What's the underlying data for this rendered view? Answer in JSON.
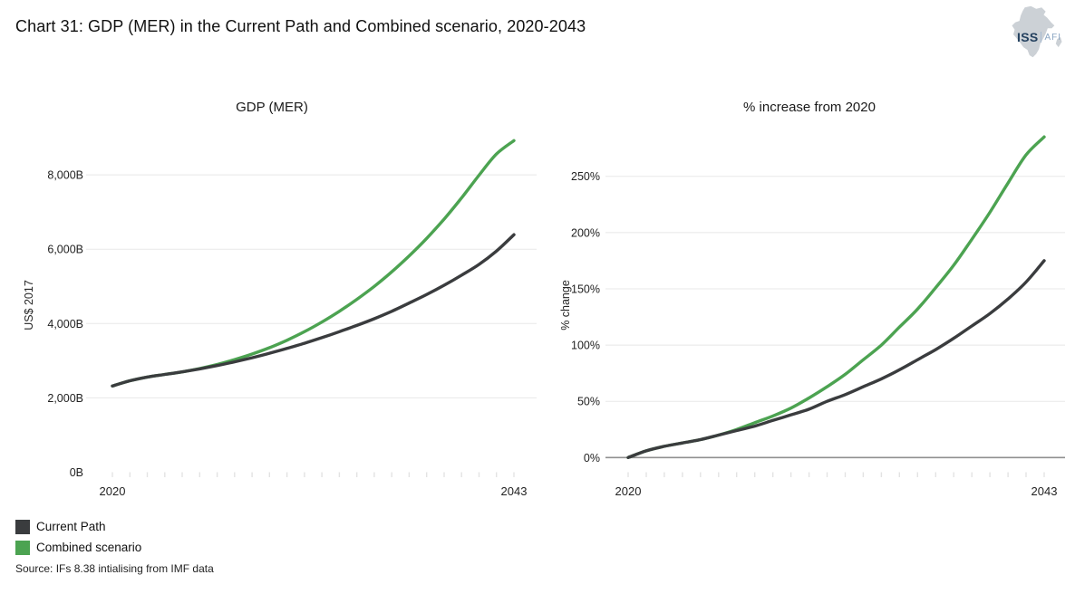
{
  "page": {
    "title": "Chart 31: GDP (MER) in the Current Path and Combined scenario, 2020-2043",
    "source": "Source: IFs 8.38 intialising from IMF data"
  },
  "logo": {
    "org": "ISS",
    "unit": "AFI"
  },
  "legend": {
    "items": [
      {
        "label": "Current Path",
        "color": "#3a3c3e"
      },
      {
        "label": "Combined scenario",
        "color": "#4ca351"
      }
    ]
  },
  "colors": {
    "current_path": "#3a3c3e",
    "combined_scenario": "#4ca351",
    "gridline": "#e8e8e8",
    "year_tick": "#e3e3e3",
    "zero_line": "#909090",
    "tick_text": "#222222"
  },
  "chart_data": [
    {
      "type": "line",
      "title": "GDP (MER)",
      "ylabel": "US$ 2017",
      "x": [
        2020,
        2021,
        2022,
        2023,
        2024,
        2025,
        2026,
        2027,
        2028,
        2029,
        2030,
        2031,
        2032,
        2033,
        2034,
        2035,
        2036,
        2037,
        2038,
        2039,
        2040,
        2041,
        2042,
        2043
      ],
      "xtick_labels": [
        "2020",
        "2043"
      ],
      "ylim": [
        0,
        9050
      ],
      "grid_at": [
        2000,
        4000,
        6000,
        8000
      ],
      "zero_line": false,
      "yticks": [
        {
          "value": 0,
          "label": "0B"
        },
        {
          "value": 2000,
          "label": "2,000B"
        },
        {
          "value": 4000,
          "label": "4,000B"
        },
        {
          "value": 6000,
          "label": "6,000B"
        },
        {
          "value": 8000,
          "label": "8,000B"
        }
      ],
      "series": [
        {
          "name": "Current Path",
          "color": "#3a3c3e",
          "values": [
            2320,
            2460,
            2560,
            2630,
            2700,
            2780,
            2870,
            2970,
            3080,
            3200,
            3330,
            3470,
            3620,
            3780,
            3950,
            4130,
            4330,
            4550,
            4780,
            5030,
            5300,
            5590,
            5950,
            6390
          ]
        },
        {
          "name": "Combined scenario",
          "color": "#4ca351",
          "values": [
            2320,
            2460,
            2560,
            2630,
            2700,
            2790,
            2900,
            3030,
            3180,
            3350,
            3550,
            3780,
            4040,
            4330,
            4650,
            5000,
            5390,
            5820,
            6290,
            6810,
            7380,
            7990,
            8560,
            8920
          ]
        }
      ]
    },
    {
      "type": "line",
      "title": "% increase from 2020",
      "ylabel": "% change",
      "x": [
        2020,
        2021,
        2022,
        2023,
        2024,
        2025,
        2026,
        2027,
        2028,
        2029,
        2030,
        2031,
        2032,
        2033,
        2034,
        2035,
        2036,
        2037,
        2038,
        2039,
        2040,
        2041,
        2042,
        2043
      ],
      "xtick_labels": [
        "2020",
        "2043"
      ],
      "ylim": [
        -13,
        286
      ],
      "grid_at": [
        50,
        100,
        150,
        200,
        250
      ],
      "zero_line": true,
      "yticks": [
        {
          "value": 0,
          "label": "0%"
        },
        {
          "value": 50,
          "label": "50%"
        },
        {
          "value": 100,
          "label": "100%"
        },
        {
          "value": 150,
          "label": "150%"
        },
        {
          "value": 200,
          "label": "200%"
        },
        {
          "value": 250,
          "label": "250%"
        }
      ],
      "series": [
        {
          "name": "Current Path",
          "color": "#3a3c3e",
          "values": [
            0,
            6,
            10,
            13,
            16,
            20,
            24,
            28,
            33,
            38,
            43,
            50,
            56,
            63,
            70,
            78,
            87,
            96,
            106,
            117,
            128,
            141,
            156,
            175
          ]
        },
        {
          "name": "Combined scenario",
          "color": "#4ca351",
          "values": [
            0,
            6,
            10,
            13,
            16,
            20,
            25,
            31,
            37,
            44,
            53,
            63,
            74,
            87,
            100,
            116,
            132,
            151,
            171,
            194,
            218,
            244,
            269,
            285
          ]
        }
      ]
    }
  ]
}
